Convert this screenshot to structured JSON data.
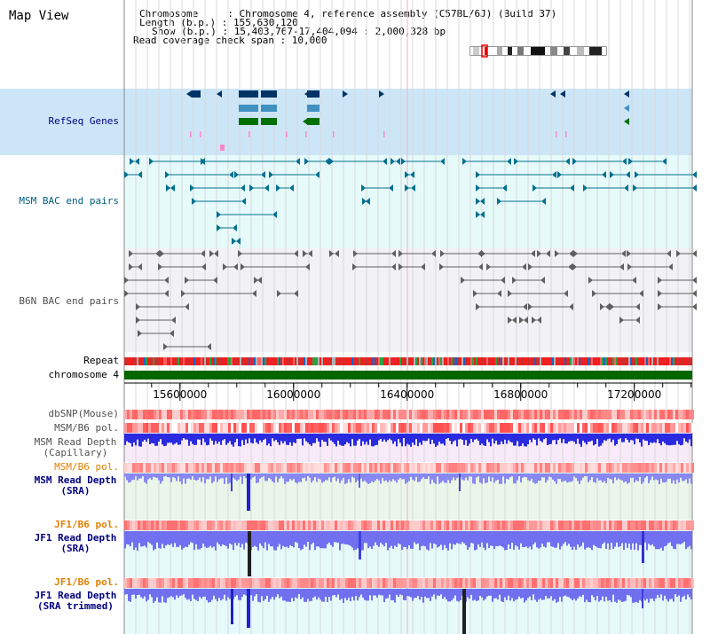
{
  "page": {
    "title": "Map View",
    "header": {
      "chromosome_line": "Chromosome     : Chromosome 4, reference assembly (C57BL/6J) (Build 37)",
      "length_line": "Length (b.p.) : 155,630,120",
      "show_line": "Show (b.p.) : 15,403,767-17,404,094 : 2,000,328 bp",
      "coverage_line": "Read coverage check span : 10,000"
    }
  },
  "tracks": {
    "refseq": {
      "label": "RefSeq Genes",
      "color": "#000080"
    },
    "msm_bac": {
      "label": "MSM BAC end pairs",
      "color": "#006080"
    },
    "b6n_bac": {
      "label": "B6N BAC end pairs",
      "color": "#505050"
    },
    "repeat": {
      "label": "Repeat"
    },
    "chromosome": {
      "label": "chromosome 4"
    },
    "dbsnp": {
      "label": "dbSNP(Mouse)"
    },
    "msm_b6_pol_1": {
      "label": "MSM/B6 pol."
    },
    "msm_read_depth_cap": {
      "label": "MSM Read Depth\n(Capillary)"
    },
    "msm_b6_pol_2": {
      "label": "MSM/B6 pol.",
      "color": "#e08000"
    },
    "msm_read_depth_sra": {
      "label": "MSM Read Depth\n(SRA)",
      "color": "#000080"
    },
    "jf1_b6_pol_1": {
      "label": "JF1/B6 pol.",
      "color": "#e08000"
    },
    "jf1_read_depth_sra": {
      "label": "JF1 Read Depth\n(SRA)",
      "color": "#000080"
    },
    "jf1_b6_pol_2": {
      "label": "JF1/B6 pol.",
      "color": "#e08000"
    },
    "jf1_read_depth_trim": {
      "label": "JF1 Read Depth\n(SRA trimmed)",
      "color": "#000080"
    }
  },
  "axis": {
    "ticks": [
      {
        "value": 15600000,
        "label": "15600000"
      },
      {
        "value": 16000000,
        "label": "16000000"
      },
      {
        "value": 16400000,
        "label": "16400000"
      },
      {
        "value": 16800000,
        "label": "16800000"
      },
      {
        "value": 17200000,
        "label": "17200000"
      }
    ],
    "range": [
      15403767,
      17404094
    ]
  },
  "colors": {
    "refseq_band": "#cce6f8",
    "msm_band": "#e6fafa",
    "b6n_band": "#f2f2f6",
    "chromosome_bar": "#006600",
    "msm_depth_bar": "#2a2ae0",
    "jf1_depth_bar": "#7070f0"
  }
}
